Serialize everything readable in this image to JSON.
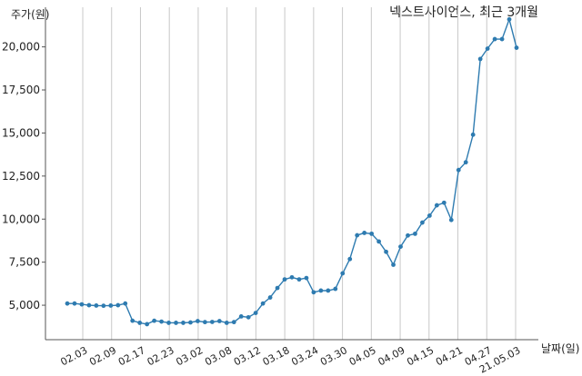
{
  "chart_data": {
    "type": "line",
    "title": "넥스트사이언스, 최근 3개월",
    "ylabel": "주가(원)",
    "xlabel": "날짜(일)",
    "ylim": [
      3000,
      22300
    ],
    "yticks": [
      5000,
      7500,
      10000,
      12500,
      15000,
      17500,
      20000
    ],
    "ytick_labels": [
      "5,000",
      "7,500",
      "10,000",
      "12,500",
      "15,000",
      "17,500",
      "20,000"
    ],
    "xtick_labels": [
      "02.03",
      "02.09",
      "02.17",
      "02.23",
      "03.02",
      "03.08",
      "03.12",
      "03.18",
      "03.24",
      "03.30",
      "04.05",
      "04.09",
      "04.15",
      "04.21",
      "04.27",
      "21.05.03"
    ],
    "grid": "vertical",
    "color": "#2e7bb0",
    "series": [
      {
        "values": [
          5100,
          5100,
          5050,
          5000,
          4980,
          4970,
          4980,
          5000,
          5100,
          4100,
          3980,
          3900,
          4100,
          4050,
          3980,
          3980,
          3980,
          4000,
          4080,
          4020,
          4030,
          4080,
          3980,
          4020,
          4350,
          4300,
          4550,
          5100,
          5450,
          6000,
          6500,
          6620,
          6500,
          6580,
          5750,
          5850,
          5850,
          5950,
          6850,
          7680,
          9060,
          9200,
          9150,
          8700,
          8100,
          7350,
          8400,
          9050,
          9150,
          9800,
          10200,
          10800,
          10950,
          9950,
          12850,
          13300,
          14900,
          19300,
          19900,
          20450,
          20450,
          21600,
          19950
        ]
      }
    ]
  }
}
